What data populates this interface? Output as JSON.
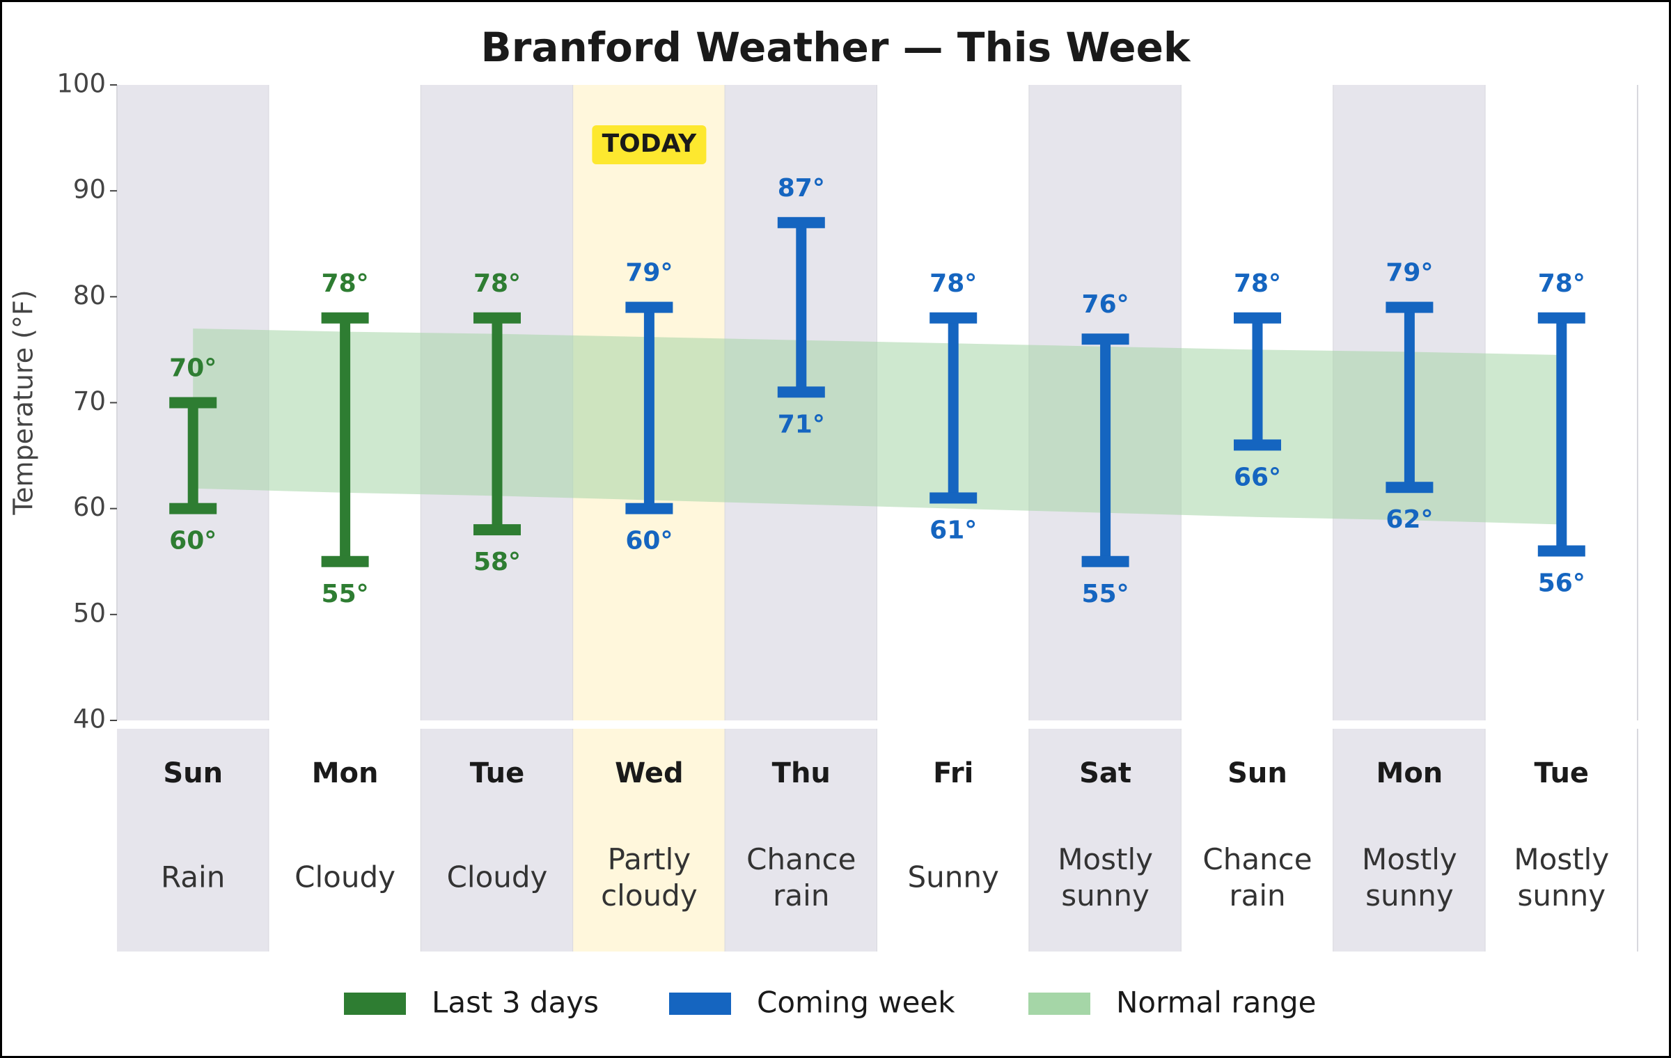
{
  "chart_data": {
    "type": "range",
    "title": "Branford Weather — This Week",
    "y_label": "Temperature (°F)",
    "categories": [
      "Sun",
      "Mon",
      "Tue",
      "Wed",
      "Thu",
      "Fri",
      "Sat",
      "Sun",
      "Mon",
      "Tue"
    ],
    "conditions": [
      "Rain",
      "Cloudy",
      "Cloudy",
      "Partly cloudy",
      "Chance rain",
      "Sunny",
      "Mostly sunny",
      "Chance rain",
      "Mostly sunny",
      "Mostly sunny"
    ],
    "annotation": {
      "text": "TODAY",
      "category_index": 3
    },
    "series": [
      {
        "name": "Last 3 days",
        "color": "#2e7d32",
        "low": [
          60,
          55,
          58,
          null,
          null,
          null,
          null,
          null,
          null,
          null
        ],
        "high": [
          70,
          78,
          78,
          null,
          null,
          null,
          null,
          null,
          null,
          null
        ],
        "low_labels": [
          "60°",
          "55°",
          "58°",
          null,
          null,
          null,
          null,
          null,
          null,
          null
        ],
        "high_labels": [
          "70°",
          "78°",
          "78°",
          null,
          null,
          null,
          null,
          null,
          null,
          null
        ]
      },
      {
        "name": "Coming week",
        "color": "#1565c0",
        "low": [
          null,
          null,
          null,
          60,
          71,
          61,
          55,
          66,
          62,
          56
        ],
        "high": [
          null,
          null,
          null,
          79,
          87,
          78,
          76,
          78,
          79,
          78
        ],
        "low_labels": [
          null,
          null,
          null,
          "60°",
          "71°",
          "61°",
          "55°",
          "66°",
          "62°",
          "56°"
        ],
        "high_labels": [
          null,
          null,
          null,
          "79°",
          "87°",
          "78°",
          "76°",
          "78°",
          "79°",
          "78°"
        ]
      }
    ],
    "normal_range": {
      "name": "Normal range",
      "color": "#a5d6a7",
      "low": [
        61.9,
        61.5,
        61.2,
        60.8,
        60.4,
        60.0,
        59.6,
        59.2,
        58.9,
        58.5
      ],
      "high": [
        77.0,
        76.7,
        76.5,
        76.2,
        75.9,
        75.6,
        75.3,
        75.0,
        74.8,
        74.5
      ]
    },
    "ylim": [
      40,
      100
    ],
    "yticks": [
      40,
      50,
      60,
      70,
      80,
      90,
      100
    ]
  }
}
